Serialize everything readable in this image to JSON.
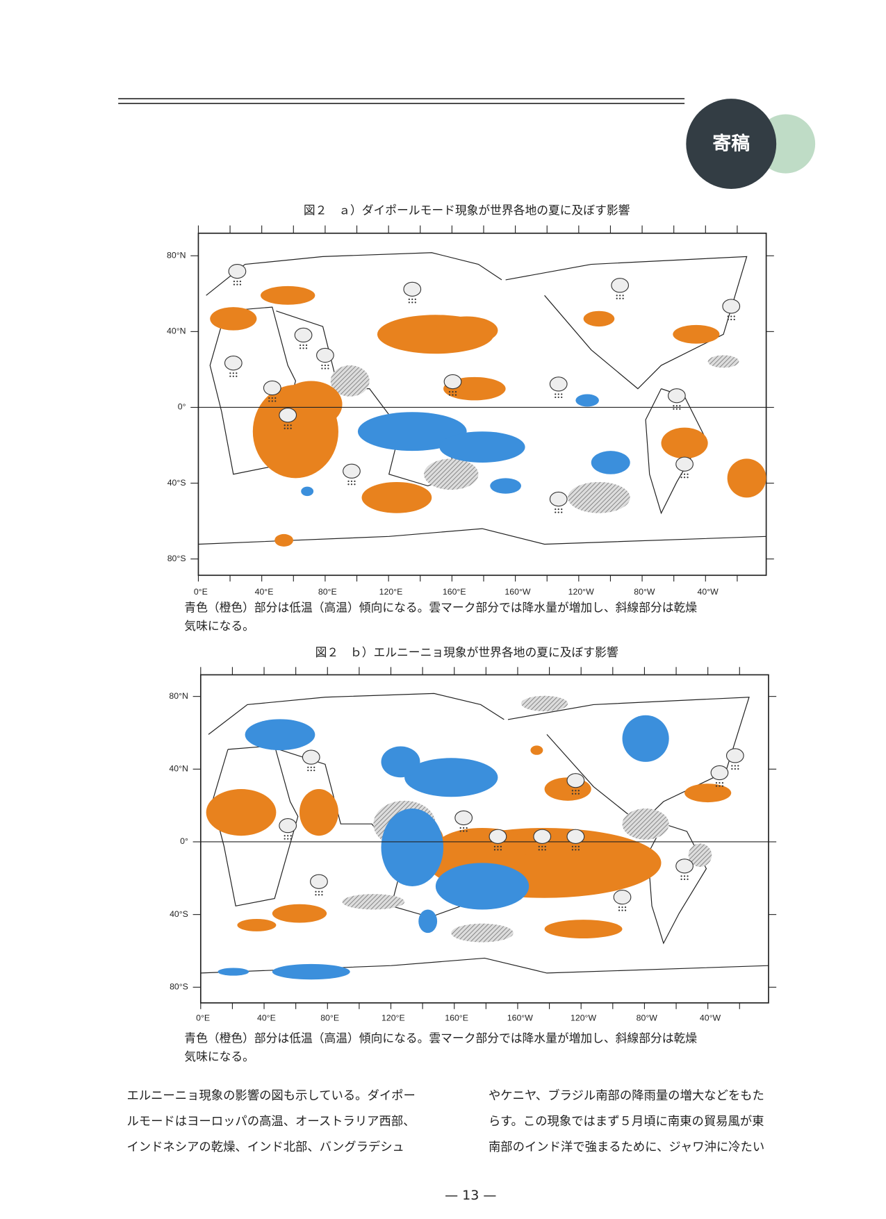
{
  "header": {
    "badge": "寄稿"
  },
  "figures": [
    {
      "title": "図２　ａ）ダイポールモード現象が世界各地の夏に及ぼす影響",
      "ylabels": [
        "80°N",
        "40°N",
        "0°",
        "40°S",
        "80°S"
      ],
      "xlabels": [
        "0°E",
        "40°E",
        "80°E",
        "120°E",
        "160°E",
        "160°W",
        "120°W",
        "80°W",
        "40°W"
      ],
      "caption": [
        "青色（橙色）部分は低温（高温）傾向になる。雲マーク部分では降水量が増加し、斜線部分は乾燥",
        "気味になる。"
      ]
    },
    {
      "title": "図２　ｂ）エルニーニョ現象が世界各地の夏に及ぼす影響",
      "ylabels": [
        "80°N",
        "40°N",
        "0°",
        "40°S",
        "80°S"
      ],
      "xlabels": [
        "0°E",
        "40°E",
        "80°E",
        "120°E",
        "160°E",
        "160°W",
        "120°W",
        "80°W",
        "40°W"
      ],
      "caption": [
        "青色（橙色）部分は低温（高温）傾向になる。雲マーク部分では降水量が増加し、斜線部分は乾燥",
        "気味になる。"
      ]
    }
  ],
  "body": {
    "columns": [
      [
        "エルニーニョ現象の影響の図も示している。ダイポー",
        "ルモードはヨーロッパの高温、オーストラリア西部、",
        "インドネシアの乾燥、インド北部、バングラデシュ"
      ],
      [
        "やケニヤ、ブラジル南部の降雨量の増大などをもた",
        "らす。この現象ではまず５月頃に南東の貿易風が東",
        "南部のインド洋で強まるために、ジャワ沖に冷たい"
      ]
    ]
  },
  "footer": {
    "page": "— 13 —"
  }
}
